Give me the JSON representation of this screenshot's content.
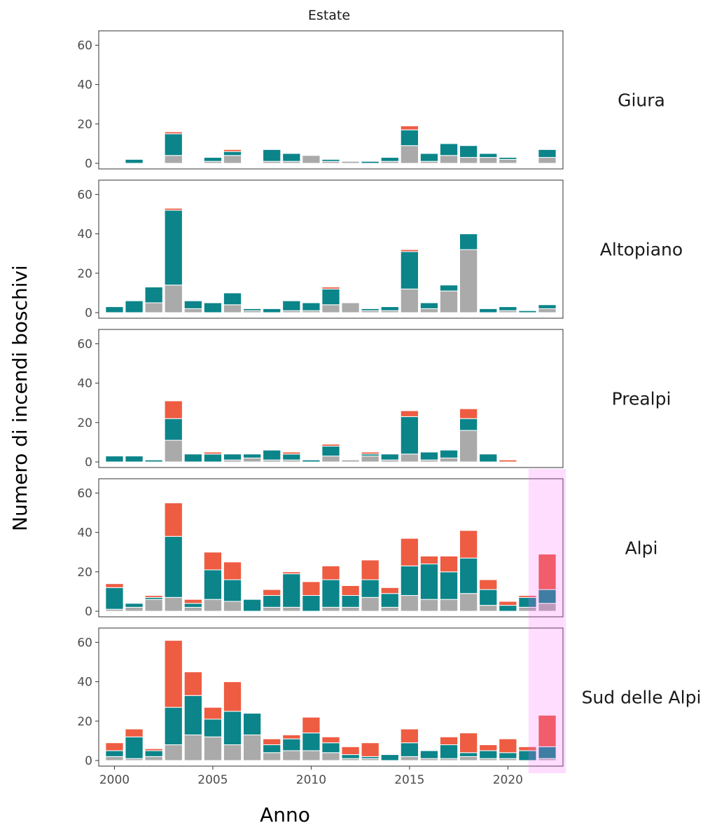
{
  "chart_data": {
    "type": "bar",
    "stacked": true,
    "title": "Estate",
    "xlabel": "Anno",
    "ylabel": "Numero di incendi boschivi",
    "ylim": [
      0,
      63
    ],
    "yticks": [
      0,
      20,
      40,
      60
    ],
    "xlim": [
      1999.2,
      2022.8
    ],
    "xticks": [
      2000,
      2005,
      2010,
      2015,
      2020
    ],
    "grid": false,
    "series_colors": [
      "#aaaaaa",
      "#0b858a",
      "#ee5c42"
    ],
    "highlight": {
      "x_range": [
        2021.05,
        2022.95
      ],
      "color": "#ff66ff",
      "opacity": 0.22
    },
    "years": [
      2000,
      2001,
      2002,
      2003,
      2004,
      2005,
      2006,
      2007,
      2008,
      2009,
      2010,
      2011,
      2012,
      2013,
      2014,
      2015,
      2016,
      2017,
      2018,
      2019,
      2020,
      2021,
      2022
    ],
    "panels": [
      {
        "name": "Giura",
        "gray": [
          0,
          0,
          0,
          4,
          0,
          1,
          4,
          0,
          1,
          1,
          4,
          1,
          1,
          0,
          1,
          9,
          1,
          4,
          3,
          3,
          2,
          0,
          3
        ],
        "teal": [
          0,
          2,
          0,
          11,
          0,
          2,
          2,
          0,
          6,
          4,
          0,
          1,
          0,
          1,
          2,
          8,
          4,
          6,
          6,
          2,
          1,
          0,
          4
        ],
        "red": [
          0,
          0,
          0,
          1,
          0,
          0,
          1,
          0,
          0,
          0,
          0,
          0,
          0,
          0,
          0,
          2,
          0,
          0,
          0,
          0,
          0,
          0,
          0
        ]
      },
      {
        "name": "Altopiano",
        "gray": [
          0,
          0,
          5,
          14,
          2,
          0,
          4,
          1,
          0,
          1,
          1,
          4,
          5,
          1,
          1,
          12,
          2,
          11,
          32,
          0,
          1,
          0,
          2
        ],
        "teal": [
          3,
          6,
          8,
          38,
          4,
          5,
          6,
          1,
          2,
          5,
          4,
          8,
          0,
          1,
          2,
          19,
          3,
          3,
          8,
          2,
          2,
          1,
          2
        ],
        "red": [
          0,
          0,
          0,
          1,
          0,
          0,
          0,
          0,
          0,
          0,
          0,
          1,
          0,
          0,
          0,
          1,
          0,
          0,
          0,
          0,
          0,
          0,
          0
        ]
      },
      {
        "name": "Prealpi",
        "gray": [
          0,
          0,
          0,
          11,
          0,
          0,
          1,
          2,
          1,
          1,
          0,
          3,
          1,
          3,
          1,
          4,
          1,
          2,
          16,
          0,
          0,
          0,
          0
        ],
        "teal": [
          3,
          3,
          1,
          11,
          4,
          4,
          3,
          2,
          5,
          3,
          1,
          5,
          0,
          1,
          3,
          19,
          4,
          4,
          6,
          4,
          0,
          0,
          0
        ],
        "red": [
          0,
          0,
          0,
          9,
          0,
          1,
          0,
          0,
          0,
          1,
          0,
          1,
          0,
          1,
          0,
          3,
          0,
          0,
          5,
          0,
          1,
          0,
          0
        ]
      },
      {
        "name": "Alpi",
        "gray": [
          1,
          2,
          6,
          7,
          2,
          6,
          5,
          0,
          2,
          2,
          0,
          2,
          2,
          7,
          2,
          8,
          6,
          6,
          9,
          3,
          0,
          2,
          4
        ],
        "teal": [
          11,
          2,
          1,
          31,
          2,
          15,
          11,
          6,
          6,
          17,
          8,
          14,
          6,
          9,
          7,
          15,
          18,
          14,
          18,
          8,
          3,
          5,
          7
        ],
        "red": [
          2,
          0,
          1,
          17,
          2,
          9,
          9,
          0,
          3,
          1,
          7,
          7,
          5,
          10,
          3,
          14,
          4,
          8,
          14,
          5,
          2,
          1,
          18
        ]
      },
      {
        "name": "Sud delle Alpi",
        "gray": [
          2,
          1,
          2,
          8,
          13,
          12,
          8,
          13,
          4,
          5,
          5,
          4,
          1,
          1,
          0,
          2,
          1,
          1,
          2,
          1,
          1,
          0,
          1
        ],
        "teal": [
          3,
          11,
          3,
          19,
          20,
          9,
          17,
          11,
          4,
          6,
          9,
          5,
          2,
          1,
          3,
          7,
          4,
          7,
          2,
          4,
          3,
          5,
          6
        ],
        "red": [
          4,
          4,
          1,
          34,
          12,
          6,
          15,
          0,
          3,
          2,
          8,
          3,
          4,
          7,
          0,
          7,
          0,
          4,
          10,
          3,
          7,
          2,
          16
        ]
      }
    ]
  }
}
